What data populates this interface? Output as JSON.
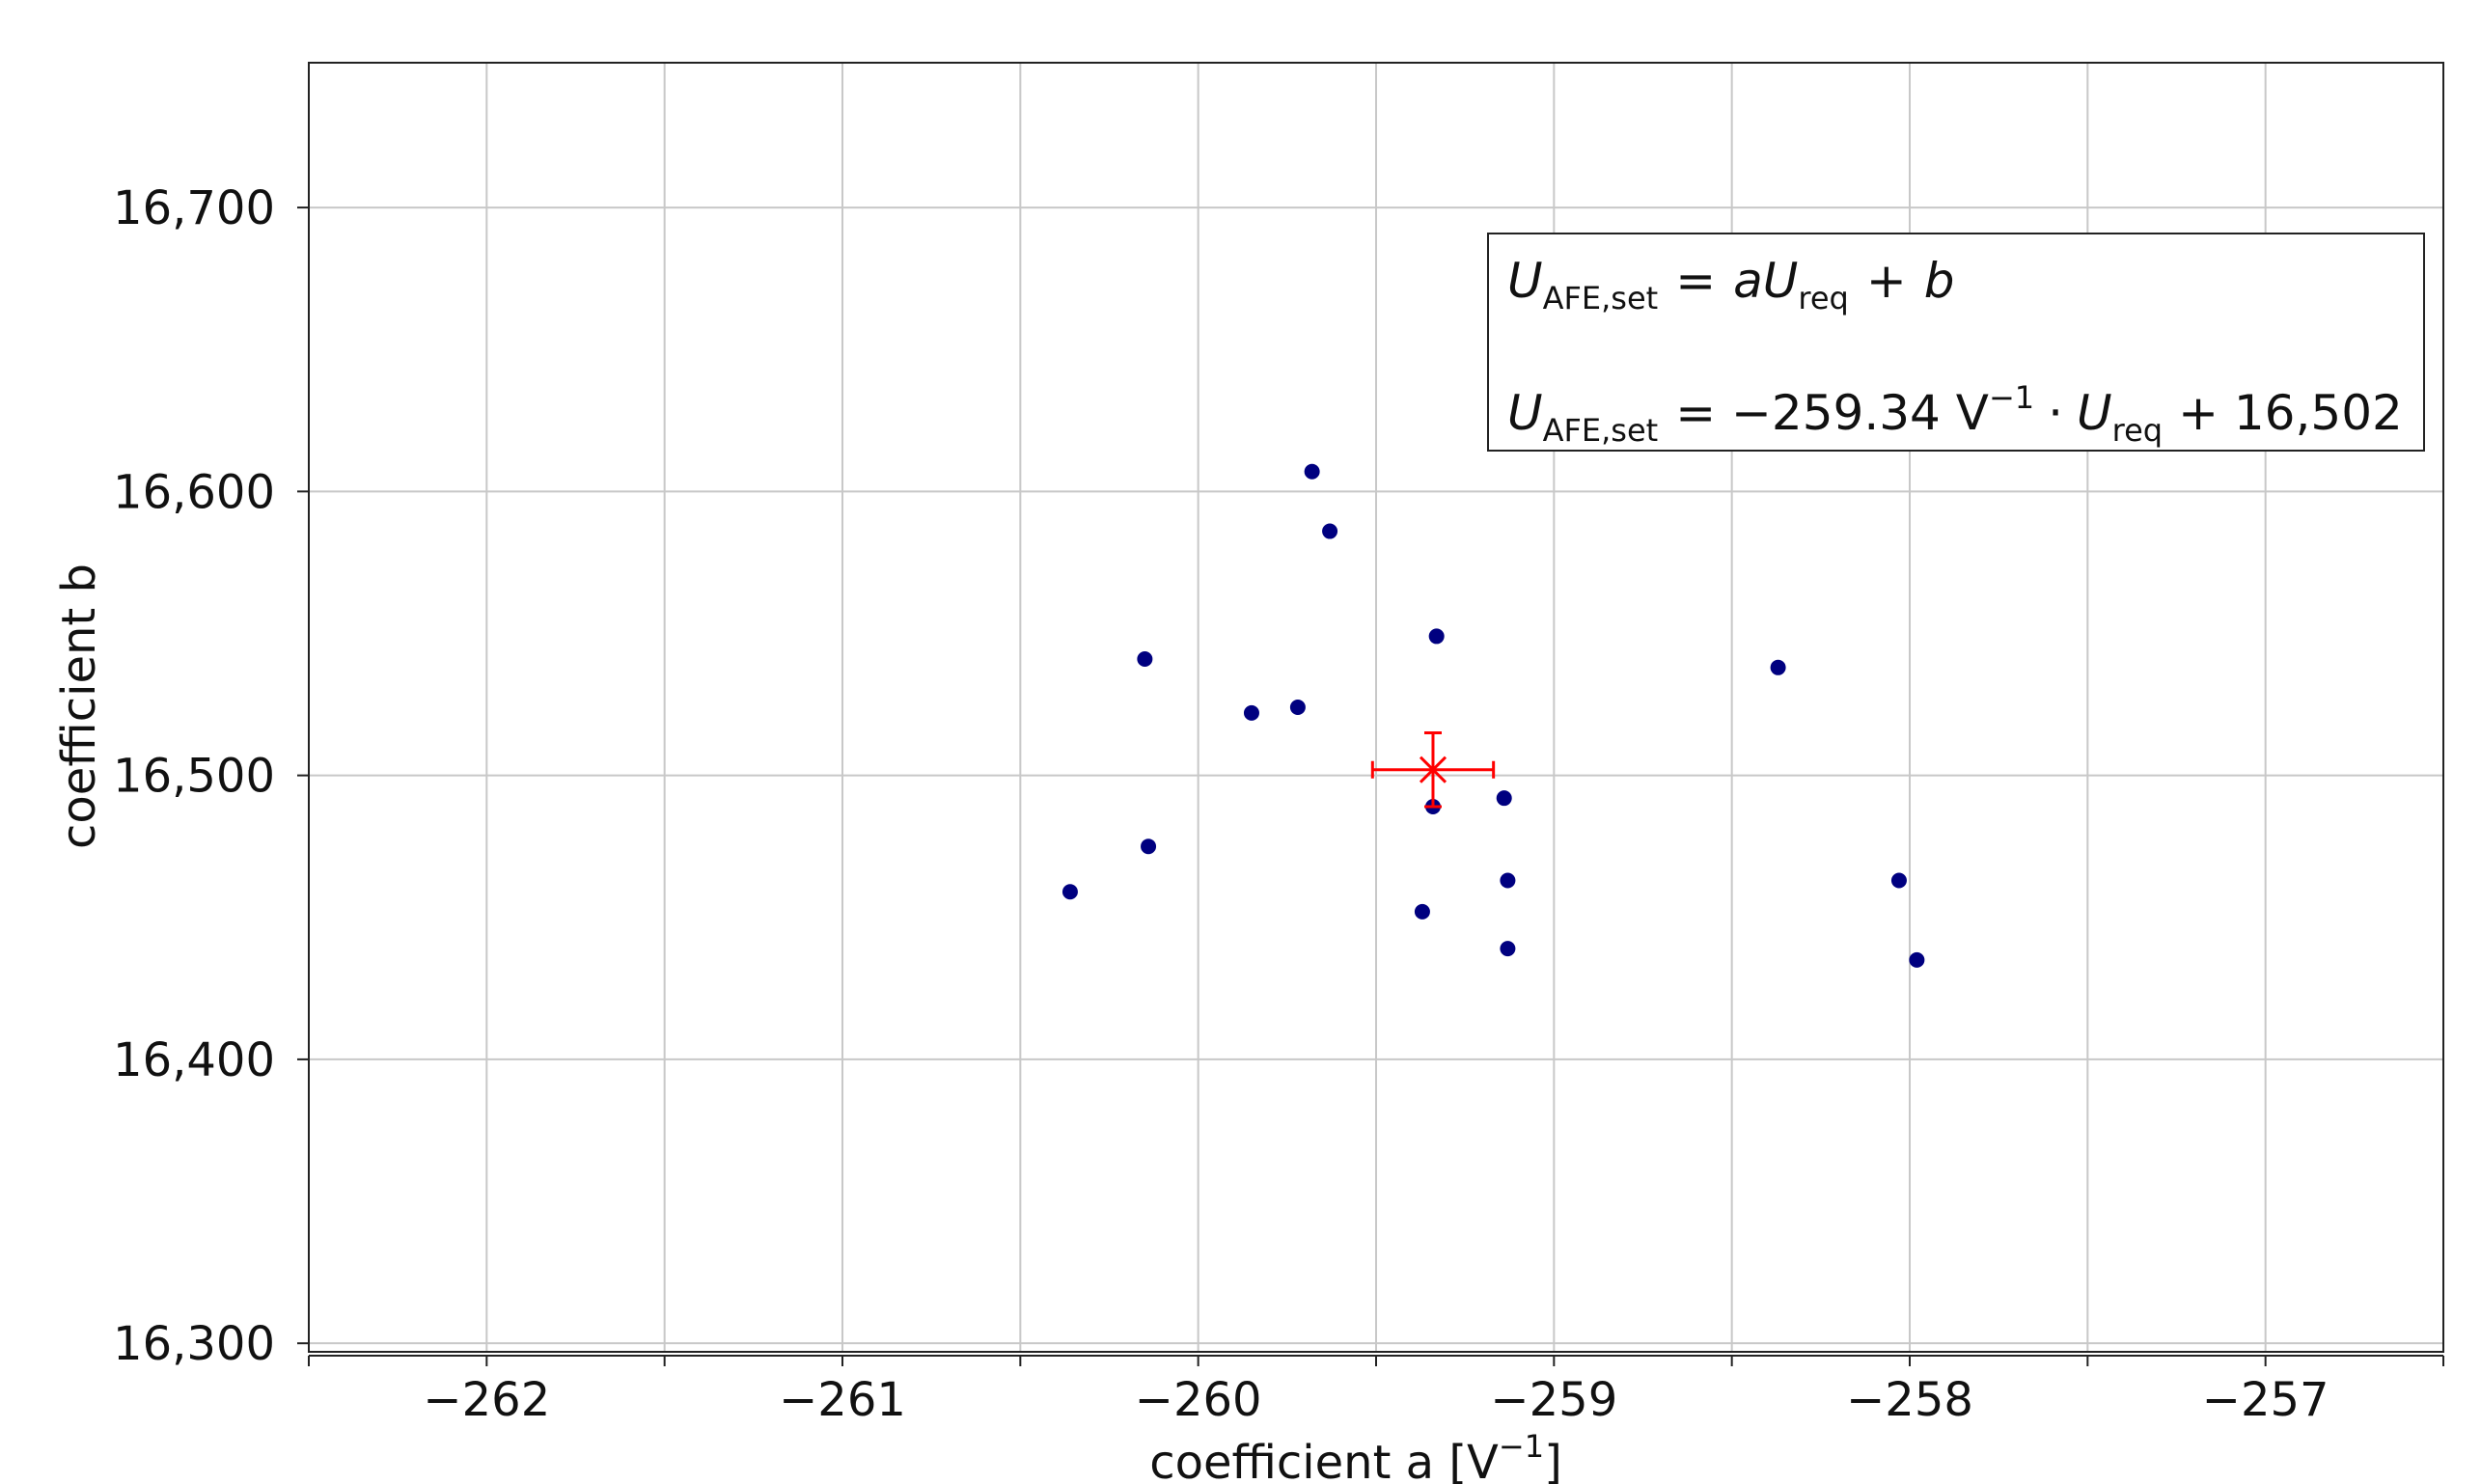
{
  "chart_data": {
    "type": "scatter",
    "xlabel": "coefficient a [V",
    "xlabel_exp": "−1",
    "xlabel_close": "]",
    "ylabel": "coefficient b",
    "xlim": [
      -262.5,
      -256.5
    ],
    "ylim": [
      16.297,
      16.751
    ],
    "x_ticks": [
      -262,
      -261,
      -260,
      -259,
      -258,
      -257
    ],
    "x_tick_labels": [
      "−262",
      "−261",
      "−260",
      "−259",
      "−258",
      "−257"
    ],
    "y_ticks": [
      16.3,
      16.4,
      16.5,
      16.6,
      16.7
    ],
    "y_tick_labels": [
      "16,300",
      "16,400",
      "16,500",
      "16,600",
      "16,700"
    ],
    "grid": true,
    "point_color": "#000080",
    "mean_color": "#ff0000",
    "points": [
      {
        "x": -259.68,
        "y": 16.607
      },
      {
        "x": -259.63,
        "y": 16.586
      },
      {
        "x": -259.33,
        "y": 16.549
      },
      {
        "x": -260.15,
        "y": 16.541
      },
      {
        "x": -258.37,
        "y": 16.538
      },
      {
        "x": -259.85,
        "y": 16.522
      },
      {
        "x": -259.72,
        "y": 16.524
      },
      {
        "x": -259.34,
        "y": 16.489
      },
      {
        "x": -259.14,
        "y": 16.492
      },
      {
        "x": -260.14,
        "y": 16.475
      },
      {
        "x": -259.13,
        "y": 16.463
      },
      {
        "x": -260.36,
        "y": 16.459
      },
      {
        "x": -259.37,
        "y": 16.452
      },
      {
        "x": -258.03,
        "y": 16.463
      },
      {
        "x": -259.13,
        "y": 16.439
      },
      {
        "x": -257.98,
        "y": 16.435
      }
    ],
    "mean": {
      "x": -259.34,
      "y": 16.502,
      "x_err": 0.17,
      "y_err": 0.013
    }
  },
  "equation": {
    "line1": {
      "var": "U",
      "var_sub": "AFE,set",
      "eq": "=",
      "a": "a",
      "u": "U",
      "u_sub": "req",
      "plus": "+",
      "b": "b"
    },
    "line2": {
      "var": "U",
      "var_sub": "AFE,set",
      "eq_value": "= −259.34 V",
      "exp": "−1",
      "dot": "·",
      "u": "U",
      "u_sub": "req",
      "tail": "+ 16,502"
    }
  }
}
